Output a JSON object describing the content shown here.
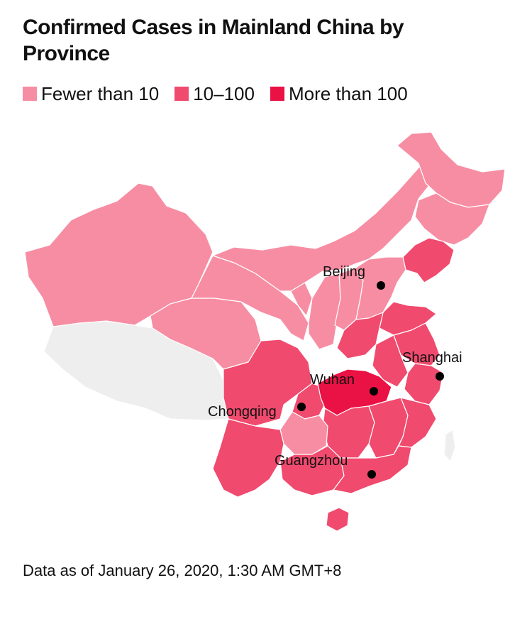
{
  "title": "Confirmed Cases in Mainland China by Province",
  "legend": [
    {
      "label": "Fewer than 10",
      "color": "#f78da3"
    },
    {
      "label": "10–100",
      "color": "#f04a6e"
    },
    {
      "label": "More than 100",
      "color": "#ea1144"
    }
  ],
  "no_data_color": "#eeeeee",
  "cities": [
    {
      "name": "Beijing"
    },
    {
      "name": "Shanghai"
    },
    {
      "name": "Wuhan"
    },
    {
      "name": "Chongqing"
    },
    {
      "name": "Guangzhou"
    }
  ],
  "footnote": "Data as of January 26, 2020, 1:30 AM GMT+8"
}
